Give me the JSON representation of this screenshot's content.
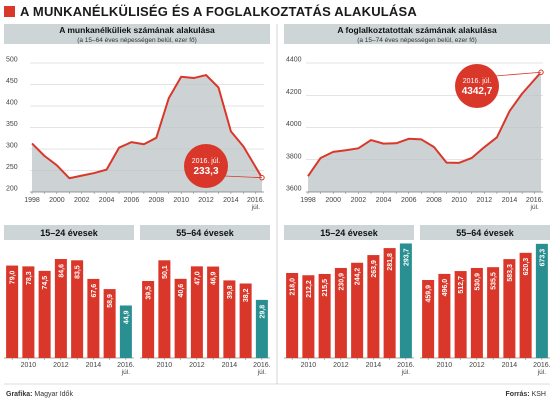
{
  "title": "A MUNKANÉLKÜLISÉG ÉS A FOGLALKOZTATÁS ALAKULÁSA",
  "footer": {
    "credit_label": "Grafika:",
    "credit_value": "Magyar Idők",
    "source_label": "Forrás:",
    "source_value": "KSH"
  },
  "colors": {
    "red": "#d9372a",
    "teal": "#2a8f91",
    "header_gray": "#cdd5d6",
    "area_gray": "#bcc4c6"
  },
  "chart_data": [
    {
      "type": "line",
      "title": "A munkanélküliek számának alakulása",
      "subtitle": "(a 15–64 éves népességen belül, ezer fő)",
      "x": [
        1998,
        1999,
        2000,
        2001,
        2002,
        2003,
        2004,
        2005,
        2006,
        2007,
        2008,
        2009,
        2010,
        2011,
        2012,
        2013,
        2014,
        2015,
        2016.5
      ],
      "values": [
        313,
        284,
        262,
        232,
        238,
        244,
        252,
        303,
        316,
        311,
        326,
        418,
        468,
        465,
        472,
        443,
        341,
        306,
        233.3
      ],
      "xticks": [
        "1998",
        "2000",
        "2002",
        "2004",
        "2006",
        "2008",
        "2010",
        "2012",
        "2014",
        "2016."
      ],
      "xtick_extra": "júl.",
      "yticks": [
        "200",
        "250",
        "300",
        "350",
        "400",
        "450",
        "500"
      ],
      "ylim": [
        200,
        500
      ],
      "annotation": {
        "label": "2016. júl.",
        "value": "233,3"
      }
    },
    {
      "type": "line",
      "title": "A foglalkoztatottak számának alakulása",
      "subtitle": "(a 15–74 éves népességen belül, ezer fő)",
      "x": [
        1998,
        1999,
        2000,
        2001,
        2002,
        2003,
        2004,
        2005,
        2006,
        2007,
        2008,
        2009,
        2010,
        2011,
        2012,
        2013,
        2014,
        2015,
        2016.5
      ],
      "values": [
        3698,
        3811,
        3849,
        3859,
        3871,
        3922,
        3900,
        3902,
        3930,
        3926,
        3879,
        3782,
        3781,
        3811,
        3878,
        3939,
        4101,
        4210,
        4342.7
      ],
      "xticks": [
        "1998",
        "2000",
        "2002",
        "2004",
        "2006",
        "2008",
        "2010",
        "2012",
        "2014",
        "2016."
      ],
      "xtick_extra": "júl.",
      "yticks": [
        "3600",
        "3800",
        "4000",
        "4200",
        "4400"
      ],
      "ylim": [
        3600,
        4400
      ],
      "annotation": {
        "label": "2016. júl.",
        "value": "4342,7"
      }
    },
    {
      "type": "bar",
      "title": "15–24 évesek",
      "categories": [
        "2009",
        "2010",
        "2011",
        "2012",
        "2013",
        "2014",
        "2015",
        "2016. júl."
      ],
      "values": [
        79.0,
        78.3,
        74.5,
        84.6,
        83.5,
        67.6,
        58.9,
        44.9
      ],
      "labels": [
        "79,0",
        "78,3",
        "74,5",
        "84,6",
        "83,5",
        "67,6",
        "58,9",
        "44,9"
      ],
      "xticks": [
        "2010",
        "2012",
        "2014",
        "2016."
      ],
      "xtick_extra": "júl.",
      "ylim": [
        0,
        100
      ]
    },
    {
      "type": "bar",
      "title": "55–64 évesek",
      "categories": [
        "2009",
        "2010",
        "2011",
        "2012",
        "2013",
        "2014",
        "2015",
        "2016. júl."
      ],
      "values": [
        39.5,
        50.1,
        40.6,
        47.0,
        46.9,
        39.8,
        38.2,
        29.8
      ],
      "labels": [
        "39,5",
        "50,1",
        "40,6",
        "47,0",
        "46,9",
        "39,8",
        "38,2",
        "29,8"
      ],
      "xticks": [
        "2010",
        "2012",
        "2014",
        "2016."
      ],
      "xtick_extra": "júl.",
      "ylim": [
        0,
        60
      ]
    },
    {
      "type": "bar",
      "title": "15–24 évesek",
      "categories": [
        "2009",
        "2010",
        "2011",
        "2012",
        "2013",
        "2014",
        "2015",
        "2016. júl."
      ],
      "values": [
        218.0,
        212.2,
        215.5,
        230.9,
        244.2,
        263.9,
        281.8,
        293.7
      ],
      "labels": [
        "218,0",
        "212,2",
        "215,5",
        "230,9",
        "244,2",
        "263,9",
        "281,8",
        "293,7"
      ],
      "xticks": [
        "2010",
        "2012",
        "2014",
        "2016."
      ],
      "xtick_extra": "júl.",
      "ylim": [
        0,
        300
      ]
    },
    {
      "type": "bar",
      "title": "55–64 évesek",
      "categories": [
        "2009",
        "2010",
        "2011",
        "2012",
        "2013",
        "2014",
        "2015",
        "2016. júl."
      ],
      "values": [
        459.9,
        496.0,
        512.7,
        530.9,
        535.5,
        583.3,
        620.3,
        673.3
      ],
      "labels": [
        "459,9",
        "496,0",
        "512,7",
        "530,9",
        "535,5",
        "583,3",
        "620,3",
        "673,3"
      ],
      "xticks": [
        "2010",
        "2012",
        "2014",
        "2016."
      ],
      "xtick_extra": "júl.",
      "ylim": [
        0,
        690
      ]
    }
  ]
}
